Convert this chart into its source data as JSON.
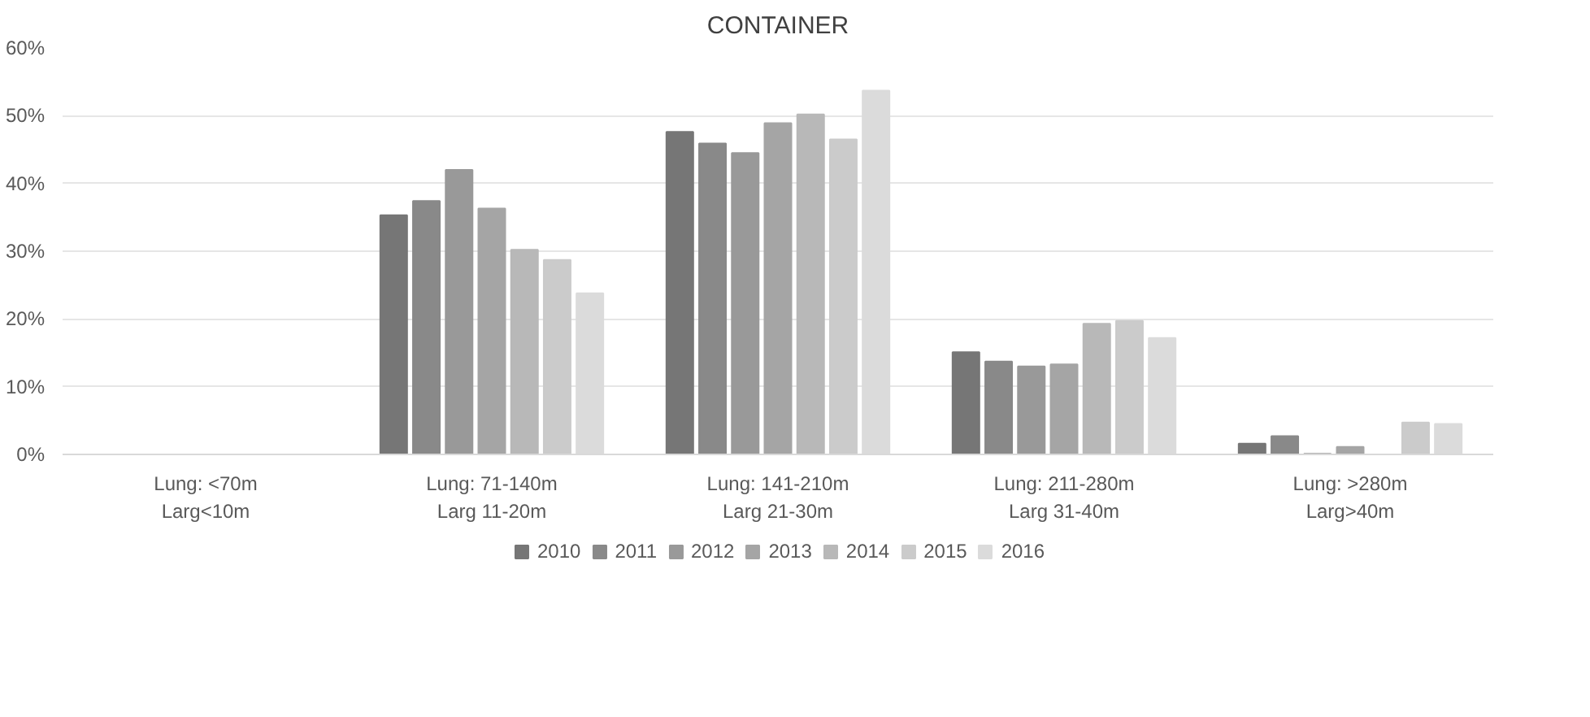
{
  "chart_data": {
    "type": "bar",
    "title": "CONTAINER",
    "categories": [
      "Lung: <70m\nLarg<10m",
      "Lung: 71-140m\nLarg 11-20m",
      "Lung: 141-210m\nLarg 21-30m",
      "Lung: 211-280m\nLarg 31-40m",
      "Lung: >280m\nLarg>40m"
    ],
    "series": [
      {
        "name": "2010",
        "color": "#767676",
        "values": [
          null,
          35.3,
          47.6,
          15.1,
          1.6
        ]
      },
      {
        "name": "2011",
        "color": "#898989",
        "values": [
          null,
          37.4,
          45.9,
          13.7,
          2.7
        ]
      },
      {
        "name": "2012",
        "color": "#999999",
        "values": [
          null,
          42.0,
          44.5,
          13.0,
          0.1
        ]
      },
      {
        "name": "2013",
        "color": "#a5a5a5",
        "values": [
          null,
          36.3,
          48.9,
          13.3,
          1.1
        ]
      },
      {
        "name": "2014",
        "color": "#b8b8b8",
        "values": [
          null,
          30.2,
          50.2,
          19.3,
          null
        ]
      },
      {
        "name": "2015",
        "color": "#cbcbcb",
        "values": [
          null,
          28.7,
          46.5,
          19.7,
          4.7
        ]
      },
      {
        "name": "2016",
        "color": "#dbdbdb",
        "values": [
          null,
          23.8,
          53.7,
          17.2,
          4.5
        ]
      }
    ],
    "ylim": [
      0,
      60
    ],
    "yticks": [
      {
        "value": 0,
        "label": "0%"
      },
      {
        "value": 10,
        "label": "10%"
      },
      {
        "value": 20,
        "label": "20%"
      },
      {
        "value": 30,
        "label": "30%"
      },
      {
        "value": 40,
        "label": "40%"
      },
      {
        "value": 50,
        "label": "50%"
      },
      {
        "value": 60,
        "label": "60%"
      }
    ],
    "grid": "y",
    "legend": "bottom"
  }
}
